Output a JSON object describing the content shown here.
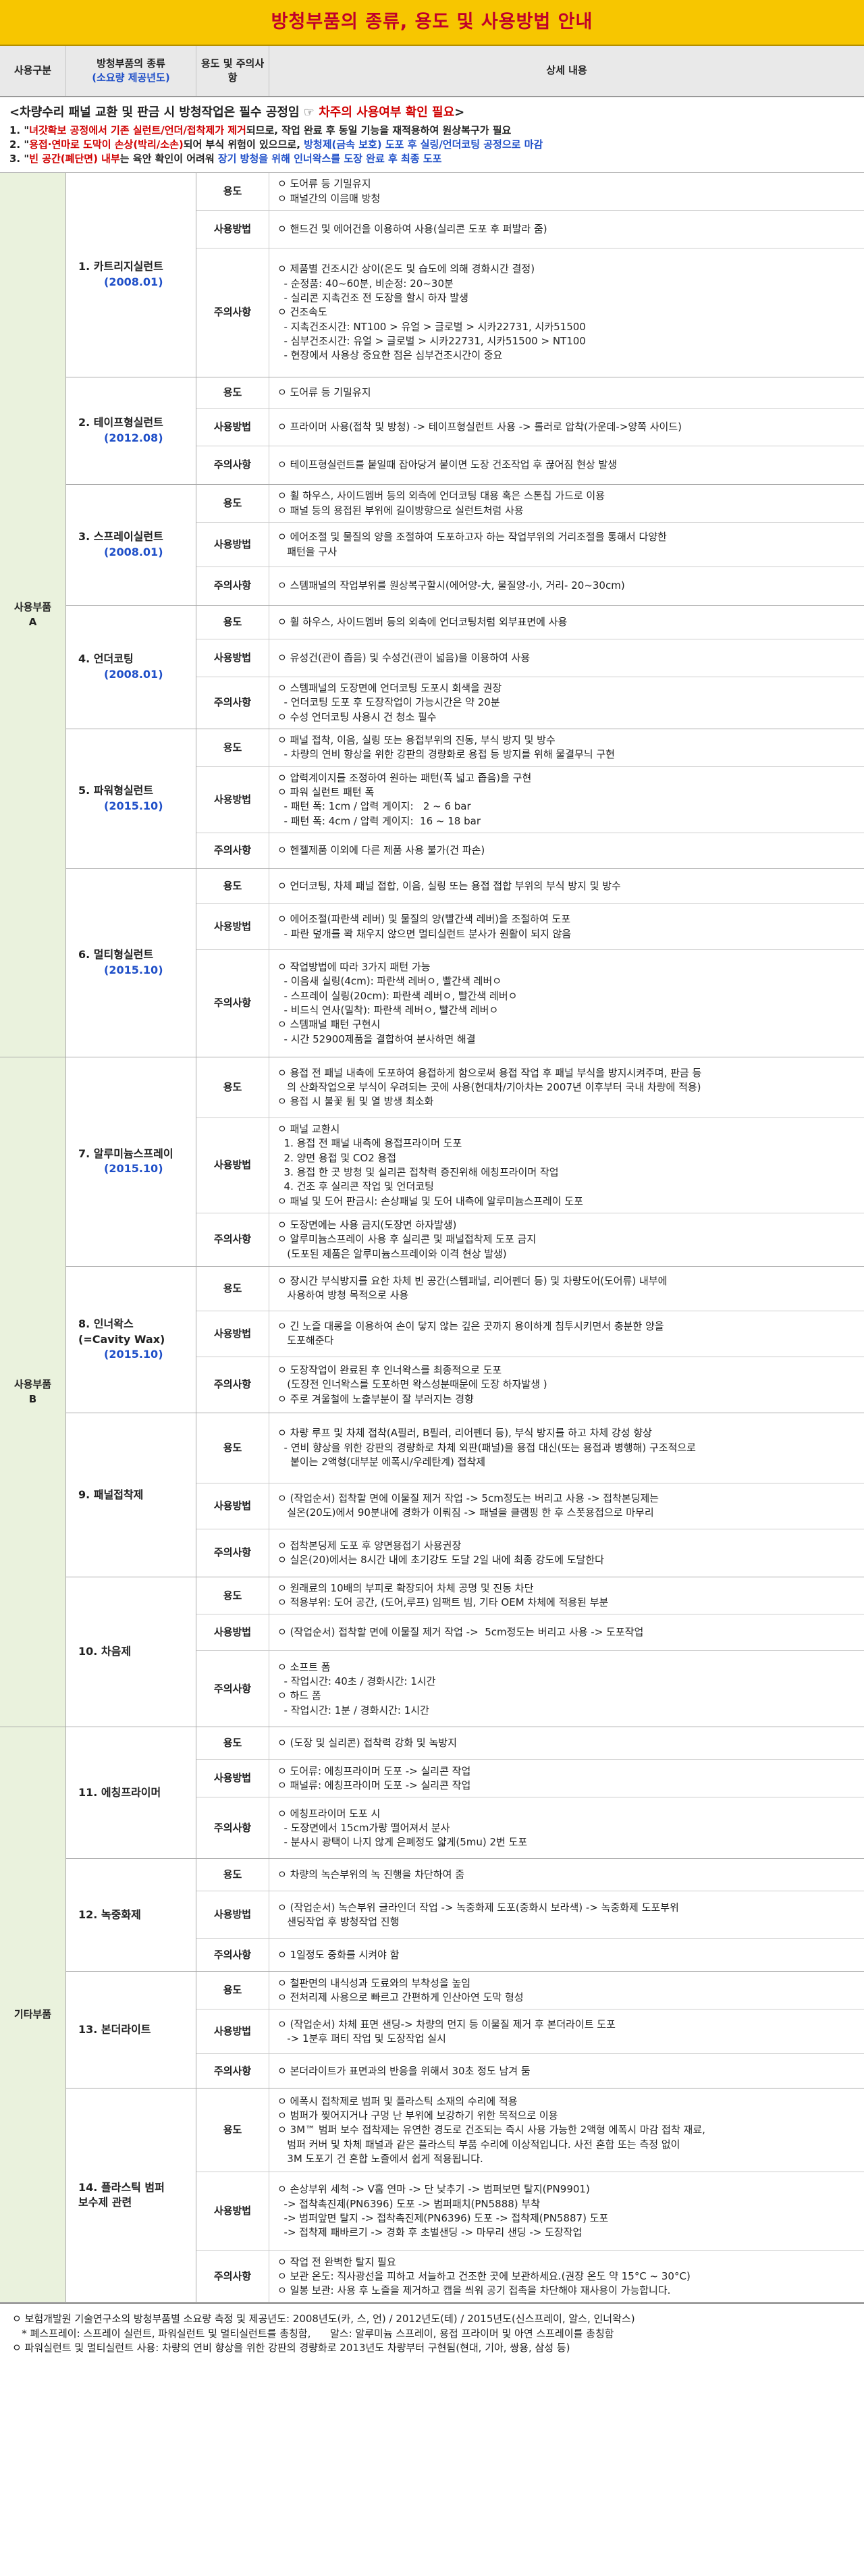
{
  "title": "방청부품의 종류, 용도 및 사용방법 안내",
  "header": {
    "category": "사용구분",
    "name_line1": "방청부품의 종류",
    "name_line2": "(소요량 제공년도)",
    "usage": "용도 및 주의사항",
    "detail": "상세 내용"
  },
  "notice": {
    "line0a": "<차량수리 패널 교환 및 판금 시 방청작업은 필수 공정임  ☞ ",
    "line0b": "차주의 사용여부 확인 필요",
    "line0c": ">",
    "line1a": "1. \"",
    "line1b": "녀갓확보 공정에서 기존 실런트/언더/접착제가 제거",
    "line1c": "되므로, 작업 완료 후 동일 기능을 재적용하여 원상복구가 필요",
    "line2a": "2. \"",
    "line2b": "용접·연마로 도막이 손상(박리/소손)",
    "line2c": "되어 부식 위험이 있으므로, ",
    "line2d": "방청제(금속 보호) 도포 후 실링/언더코팅 공정으로 마감",
    "line3a": "3. \"",
    "line3b": "빈 공간(폐단면) 내부",
    "line3c": "는 육안 확인이 어려워 ",
    "line3d": "장기 방청을 위해 인너왁스를 도장 완료 후 최종 도포"
  },
  "labels": {
    "use": "용도",
    "method": "사용방법",
    "caution": "주의사항"
  },
  "categories": [
    {
      "label": "사용부품\nA",
      "products": [
        {
          "name": "1. 카트리지실런트",
          "year": "(2008.01)",
          "rows": [
            {
              "label": "용도",
              "height": 56,
              "lines": [
                "ㅇ 도어류 등 기밀유지",
                "ㅇ 패널간의 이음매 방청"
              ]
            },
            {
              "label": "사용방법",
              "height": 56,
              "lines": [
                "ㅇ 핸드건 및 에어건을 이용하여 사용(실리콘 도포 후 퍼발라 줌)"
              ]
            },
            {
              "label": "주의사항",
              "height": 190,
              "lines": [
                "ㅇ 제품별 건조시간 상이(온도 및 습도에 의해 경화시간 결정)",
                "  - 순정품: 40~60분, 비순정: 20~30분",
                "  - 실리콘 지촉건조 전 도장을 할시 하자 발생",
                "ㅇ 건조속도",
                "  - 지촉건조시간: NT100 > 유얼 > 글로벌 > 시카22731, 시카51500",
                "  - 심부건조시간: 유얼 > 글로벌 > 시카22731, 시카51500 > NT100",
                "  - 현장에서 사용상 중요한 점은 심부건조시간이 중요"
              ]
            }
          ]
        },
        {
          "name": "2. 테이프형실런트",
          "year": "(2012.08)",
          "rows": [
            {
              "label": "용도",
              "height": 46,
              "lines": [
                "ㅇ 도어류 등 기밀유지"
              ]
            },
            {
              "label": "사용방법",
              "height": 56,
              "lines": [
                "ㅇ 프라이머 사용(접착 및 방청) -> 테이프형실런트 사용 -> 롤러로 압착(가운데->양쪽 사이드)"
              ]
            },
            {
              "label": "주의사항",
              "height": 56,
              "lines": [
                "ㅇ 테이프형실런트를 붙일때 잡아당겨 붙이면 도장 건조작업 후 끊어짐 현상 발생"
              ]
            }
          ]
        },
        {
          "name": "3. 스프레이실런트",
          "year": "(2008.01)",
          "rows": [
            {
              "label": "용도",
              "height": 56,
              "lines": [
                "ㅇ 휠 하우스, 사이드멤버 등의 외측에 언더코팅 대용 혹은 스톤칩 가드로 이용",
                "ㅇ 패널 등의 용접된 부위에 길이방향으로 실런트처럼 사용"
              ]
            },
            {
              "label": "사용방법",
              "height": 66,
              "lines": [
                "ㅇ 에어조절 및 물질의 양을 조절하여 도포하고자 하는 작업부위의 거리조절을 통해서 다양한",
                "   패턴을 구사"
              ]
            },
            {
              "label": "주의사항",
              "height": 56,
              "lines": [
                "ㅇ 스템패널의 작업부위를 원상복구할시(에어양-大, 물질양-小, 거리- 20~30cm)"
              ]
            }
          ]
        },
        {
          "name": "4. 언더코팅",
          "year": "(2008.01)",
          "rows": [
            {
              "label": "용도",
              "height": 50,
              "lines": [
                "ㅇ 휠 하우스, 사이드멤버 등의 외측에 언더코팅처럼 외부표면에 사용"
              ]
            },
            {
              "label": "사용방법",
              "height": 56,
              "lines": [
                "ㅇ 유성건(관이 좁음) 및 수성건(관이 넓음)을 이용하여 사용"
              ]
            },
            {
              "label": "주의사항",
              "height": 74,
              "lines": [
                "ㅇ 스템패널의 도장면에 언더코팅 도포시 회색을 권장",
                "  - 언더코팅 도포 후 도장작업이 가능시간은 약 20분",
                "ㅇ 수성 언더코팅 사용시 건 청소 필수"
              ]
            }
          ]
        },
        {
          "name": "5. 파워형실런트",
          "year": "(2015.10)",
          "rows": [
            {
              "label": "용도",
              "height": 56,
              "lines": [
                "ㅇ 패널 접착, 이음, 실링 또는 용접부위의 진동, 부식 방지 및 방수",
                "  - 차량의 연비 향상을 위한 강판의 경량화로 용접 등 방지를 위해 물결무늬 구현"
              ]
            },
            {
              "label": "사용방법",
              "height": 92,
              "lines": [
                "ㅇ 압력계이지를 조정하여 원하는 패턴(폭 넓고 좁음)을 구현",
                "ㅇ 파워 실런트 패턴 폭",
                "  - 패턴 폭: 1cm / 압력 게이지:   2 ~ 6 bar",
                "  - 패턴 폭: 4cm / 압력 게이지:  16 ~ 18 bar"
              ]
            },
            {
              "label": "주의사항",
              "height": 52,
              "lines": [
                "ㅇ 헨젤제품 이외에 다른 제품 사용 불가(건 파손)"
              ]
            }
          ]
        },
        {
          "name": "6. 멀티형실런트",
          "year": "(2015.10)",
          "rows": [
            {
              "label": "용도",
              "height": 52,
              "lines": [
                "ㅇ 언더코팅, 차체 패널 접합, 이음, 실링 또는 용접 접합 부위의 부식 방지 및 방수"
              ]
            },
            {
              "label": "사용방법",
              "height": 68,
              "lines": [
                "ㅇ 에어조절(파란색 레버) 및 물질의 양(빨간색 레버)을 조절하여 도포",
                "  - 파란 덮개를 꽉 채우지 않으면 멀티실런트 분사가 원활이 되지 않음"
              ]
            },
            {
              "label": "주의사항",
              "height": 158,
              "lines": [
                "ㅇ 작업방법에 따라 3가지 패턴 가능",
                "  - 이음새 실링(4cm): 파란색 레버ㅇ, 빨간색 레버ㅇ",
                "  - 스프레이 실링(20cm): 파란색 레버ㅇ, 빨간색 레버ㅇ",
                "  - 비드식 연사(밀착): 파란색 레버ㅇ, 빨간색 레버ㅇ",
                "ㅇ 스템패널 패턴 구현시",
                "  - 시간 52900제품을 결합하여 분사하면 해결"
              ]
            }
          ]
        }
      ]
    },
    {
      "label": "사용부품\nB",
      "products": [
        {
          "name": "7. 알루미늄스프레이",
          "year": "(2015.10)",
          "rows": [
            {
              "label": "용도",
              "height": 90,
              "lines": [
                "ㅇ 용접 전 패널 내측에 도포하여 용접하게 함으로써 용접 작업 후 패널 부식을 방지시켜주며, 판금 등",
                "   의 산화작업으로 부식이 우려되는 곳에 사용(현대차/기아차는 2007년 이후부터 국내 차량에 적용)",
                "ㅇ 용접 시 불꽃 튐 및 열 방생 최소화"
              ]
            },
            {
              "label": "사용방법",
              "height": 138,
              "lines": [
                "ㅇ 패널 교환시",
                "  1. 용접 전 패널 내측에 용접프라이머 도포",
                "  2. 양면 용접 및 CO2 용접",
                "  3. 용접 한 곳 방청 및 실리콘 접착력 증진위해 에칭프라이머 작업",
                "  4. 건조 후 실리콘 작업 및 언더코팅",
                "ㅇ 패널 및 도어 판금시: 손상패널 및 도어 내측에 알루미늄스프레이 도포"
              ]
            },
            {
              "label": "주의사항",
              "height": 78,
              "lines": [
                "ㅇ 도장면에는 사용 금지(도장면 하자발생)",
                "ㅇ 알루미늄스프레이 사용 후 실리콘 및 패널접착제 도포 금지",
                "   (도포된 제품은 알루미늄스프레이와 이격 현상 발생)"
              ]
            }
          ]
        },
        {
          "name": "8. 인너왁스\n(=Cavity Wax)",
          "year": "(2015.10)",
          "rows": [
            {
              "label": "용도",
              "height": 66,
              "lines": [
                "ㅇ 장시간 부식방지를 요한 차체 빈 공간(스템패널, 리어펜더 등) 및 차량도어(도어류) 내부에",
                "   사용하여 방청 목적으로 사용"
              ]
            },
            {
              "label": "사용방법",
              "height": 68,
              "lines": [
                "ㅇ 긴 노즐 대롱을 이용하여 손이 닿지 않는 깊은 곳까지 용이하게 침투시키면서 충분한 양을",
                "   도포해준다"
              ]
            },
            {
              "label": "주의사항",
              "height": 82,
              "lines": [
                "ㅇ 도장작업이 완료된 후 인너왁스를 최종적으로 도포",
                "   (도장전 인너왁스를 도포하면 왁스성분때문에 도장 하자발생 )",
                "ㅇ 주로 겨울철에 노출부분이 잘 부러지는 경향"
              ]
            }
          ]
        },
        {
          "name": "9. 패널접착제",
          "year": "",
          "rows": [
            {
              "label": "용도",
              "height": 104,
              "lines": [
                "ㅇ 차량 루프 및 차체 접착(A필러, B필러, 리어펜더 등), 부식 방지를 하고 차체 강성 향상",
                "  - 연비 향상을 위한 강판의 경량화로 차체 외판(패널)을 용접 대신(또는 용접과 병행해) 구조적으로",
                "    붙이는 2액형(대부분 에폭시/우레탄계) 접착제"
              ]
            },
            {
              "label": "사용방법",
              "height": 68,
              "lines": [
                "ㅇ (작업순서) 접착할 면에 이물질 제거 작업 -> 5cm정도는 버리고 사용 -> 접착본딩제는",
                "   실온(20도)에서 90분내에 경화가 이뤄짐 -> 패널을 클램핑 한 후 스폿용접으로 마무리"
              ]
            },
            {
              "label": "주의사항",
              "height": 70,
              "lines": [
                "ㅇ 접착본딩제 도포 후 양면용접기 사용권장",
                "ㅇ 실온(20)에서는 8시간 내에 초기강도 도달 2일 내에 최종 강도에 도달한다"
              ]
            }
          ]
        },
        {
          "name": "10. 차음제",
          "year": "",
          "rows": [
            {
              "label": "용도",
              "height": 52,
              "lines": [
                "ㅇ 원래료의 10배의 부피로 확장되어 차체 공명 및 진동 차단",
                "ㅇ 적용부위: 도어 공간, (도어,루프) 임팩트 빔, 기타 OEM 차체에 적용된 부분"
              ]
            },
            {
              "label": "사용방법",
              "height": 54,
              "lines": [
                "ㅇ (작업순서) 접착할 면에 이물질 제거 작업 ->  5cm정도는 버리고 사용 -> 도포작업"
              ]
            },
            {
              "label": "주의사항",
              "height": 112,
              "lines": [
                "ㅇ 소프트 폼",
                "  - 작업시간: 40초 / 경화시간: 1시간",
                "ㅇ 하드 폼",
                "  - 작업시간: 1분 / 경화시간: 1시간"
              ]
            }
          ]
        }
      ]
    },
    {
      "label": "기타부품",
      "products": [
        {
          "name": "11. 에칭프라이머",
          "year": "",
          "rows": [
            {
              "label": "용도",
              "height": 48,
              "lines": [
                "ㅇ (도장 및 실리콘) 접착력 강화 및 녹방지"
              ]
            },
            {
              "label": "사용방법",
              "height": 56,
              "lines": [
                "ㅇ 도어류: 에칭프라이머 도포 -> 실리콘 작업",
                "ㅇ 패널류: 에칭프라이머 도포 -> 실리콘 작업"
              ]
            },
            {
              "label": "주의사항",
              "height": 90,
              "lines": [
                "ㅇ 에칭프라이머 도포 시",
                "  - 도장면에서 15cm가량 떨어져서 분사",
                "  - 분사시 광택이 나지 않게 은폐정도 얇게(5mu) 2번 도포"
              ]
            }
          ]
        },
        {
          "name": "12. 녹중화제",
          "year": "",
          "rows": [
            {
              "label": "용도",
              "height": 48,
              "lines": [
                "ㅇ 차량의 녹슨부위의 녹 진행을 차단하여 줌"
              ]
            },
            {
              "label": "사용방법",
              "height": 70,
              "lines": [
                "ㅇ (작업순서) 녹슨부위 글라인더 작업 -> 녹중화제 도포(중화시 보라색) -> 녹중화제 도포부위",
                "   샌딩작업 후 방청작업 진행"
              ]
            },
            {
              "label": "주의사항",
              "height": 48,
              "lines": [
                "ㅇ 1일정도 중화를 시켜야 함"
              ]
            }
          ]
        },
        {
          "name": "13. 본더라이트",
          "year": "",
          "rows": [
            {
              "label": "용도",
              "height": 56,
              "lines": [
                "ㅇ 철판면의 내식성과 도료와의 부착성을 높임",
                "ㅇ 전처리제 사용으로 빠르고 간편하게 인산아연 도막 형성"
              ]
            },
            {
              "label": "사용방법",
              "height": 66,
              "lines": [
                "ㅇ (작업순서) 차체 표면 샌딩-> 차량의 먼지 등 이물질 제거 후 본더라이트 도포",
                "   -> 1분후 퍼티 작업 및 도장작업 실시"
              ]
            },
            {
              "label": "주의사항",
              "height": 50,
              "lines": [
                "ㅇ 본더라이트가 표면과의 반응을 위해서 30초 정도 남겨 둠"
              ]
            }
          ]
        },
        {
          "name": "14. 플라스틱 범퍼\n보수제 관련",
          "year": "",
          "rows": [
            {
              "label": "용도",
              "height": 124,
              "lines": [
                "ㅇ 에폭시 접착제로 범퍼 및 플라스틱 소재의 수리에 적용",
                "ㅇ 범퍼가 찢어지거나 구멍 난 부위에 보강하기 위한 목적으로 이용",
                "ㅇ 3M™ 범퍼 보수 접착제는 유연한 경도로 건조되는 즉시 사용 가능한 2액형 에폭시 마감 접착 재료,",
                "   범퍼 커버 및 차체 패널과 같은 플라스틱 부품 수리에 이상적입니다. 사전 혼합 또는 측정 없이",
                "   3M 도포기 건 혼합 노즐에서 쉽게 적용됩니다."
              ]
            },
            {
              "label": "사용방법",
              "height": 116,
              "lines": [
                "ㅇ 손상부위 세척 -> V홈 연마 -> 단 낮추기 -> 범퍼보면 탈지(PN9901)",
                "  -> 접착촉진제(PN6396) 도포 -> 범퍼패치(PN5888) 부착",
                "  -> 범퍼앞면 탈지 -> 접착촉진제(PN6396) 도포 -> 접착제(PN5887) 도포",
                "  -> 접착제 패바르기 -> 경화 후 초벌샌딩 -> 마무리 샌딩 -> 도장작업"
              ]
            },
            {
              "label": "주의사항",
              "height": 76,
              "lines": [
                "ㅇ 작업 전 완벽한 탈지 필요",
                "ㅇ 보관 온도: 직사광선을 피하고 서늘하고 건조한 곳에 보관하세요.(권장 온도 약 15°C ~ 30°C)",
                "ㅇ 일봉 보관: 사용 후 노즐을 제거하고 캡을 씌워 공기 접촉을 차단해야 재사용이 가능합니다."
              ]
            }
          ]
        }
      ]
    }
  ],
  "footer": [
    "ㅇ 보험개발원 기술연구소의 방청부품별 소요량 측정 및 제공년도: 2008년도(카, 스, 언) / 2012년도(테) / 2015년도(신스프레이, 알스, 인너왁스)",
    "   * 폐스프레이: 스프레이 실런트, 파워실런트 및 멀티실런트를 총칭함,      알스: 알루미늄 스프레이, 용접 프라이머 및 아연 스프레이를 총칭함",
    "ㅇ 파워실런트 및 멀티실런트 사용: 차량의 연비 향상을 위한 강판의 경량화로 2013년도 차량부터 구현됨(현대, 기아, 쌍용, 삼성 등)"
  ]
}
